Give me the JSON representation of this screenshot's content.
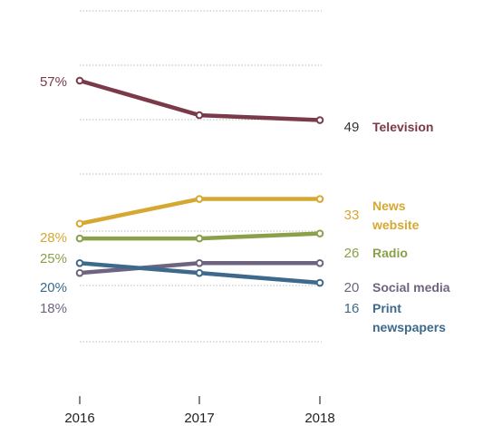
{
  "chart_data": {
    "type": "line",
    "x": [
      "2016",
      "2017",
      "2018"
    ],
    "grid": true,
    "series": [
      {
        "name": "Television",
        "values": [
          57,
          50,
          49
        ],
        "color": "#7b3a4a",
        "start_label": "57%",
        "end_label": "49",
        "name_lines": [
          "Television"
        ]
      },
      {
        "name": "News website",
        "values": [
          28,
          33,
          33
        ],
        "color": "#d6a832",
        "start_label": "28%",
        "end_label": "33",
        "name_lines": [
          "News",
          "website"
        ]
      },
      {
        "name": "Radio",
        "values": [
          25,
          25,
          26
        ],
        "color": "#8aa04b",
        "start_label": "25%",
        "end_label": "26",
        "name_lines": [
          "Radio"
        ]
      },
      {
        "name": "Social media",
        "values": [
          18,
          20,
          20
        ],
        "color": "#6e6480",
        "start_label": "18%",
        "end_label": "20",
        "name_lines": [
          "Social media"
        ]
      },
      {
        "name": "Print newspapers",
        "values": [
          20,
          18,
          16
        ],
        "color": "#3d6a8c",
        "start_label": "20%",
        "end_label": "16",
        "name_lines": [
          "Print",
          "newspapers"
        ]
      }
    ]
  }
}
